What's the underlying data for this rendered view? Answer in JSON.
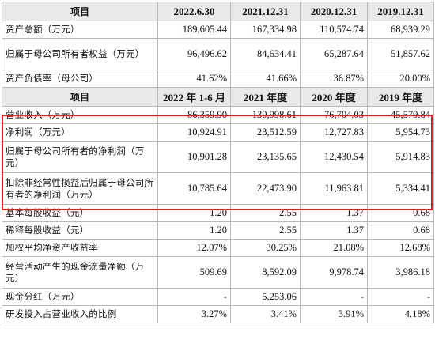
{
  "table1": {
    "header": [
      "项目",
      "2022.6.30",
      "2021.12.31",
      "2020.12.31",
      "2019.12.31"
    ],
    "rows": [
      [
        "资产总额（万元）",
        "189,605.44",
        "167,334.98",
        "110,574.74",
        "68,939.29"
      ],
      [
        "归属于母公司所有者权益（万元）",
        "96,496.62",
        "84,634.41",
        "65,287.64",
        "51,857.62"
      ],
      [
        "资产负债率（母公司）",
        "41.62%",
        "41.66%",
        "36.87%",
        "20.00%"
      ]
    ]
  },
  "table2": {
    "header": [
      "项目",
      "2022 年 1-6 月",
      "2021 年度",
      "2020 年度",
      "2019 年度"
    ],
    "rows": [
      [
        "营业收入（万元）",
        "86,359.90",
        "130,998.61",
        "76,704.03",
        "45,579.84"
      ],
      [
        "净利润（万元）",
        "10,924.91",
        "23,512.59",
        "12,727.83",
        "5,954.73"
      ],
      [
        "归属于母公司所有者的净利润（万元）",
        "10,901.28",
        "23,135.65",
        "12,430.54",
        "5,914.83"
      ],
      [
        "扣除非经常性损益后归属于母公司所有者的净利润（万元）",
        "10,785.64",
        "22,473.90",
        "11,963.81",
        "5,334.41"
      ],
      [
        "基本每股收益（元）",
        "1.20",
        "2.55",
        "1.37",
        "0.68"
      ],
      [
        "稀释每股收益（元）",
        "1.20",
        "2.55",
        "1.37",
        "0.68"
      ],
      [
        "加权平均净资产收益率",
        "12.07%",
        "30.25%",
        "21.08%",
        "12.68%"
      ],
      [
        "经营活动产生的现金流量净额（万元）",
        "509.69",
        "8,592.09",
        "9,978.74",
        "3,986.18"
      ],
      [
        "现金分红（万元）",
        "-",
        "5,253.06",
        "-",
        "-"
      ],
      [
        "研发投入占营业收入的比例",
        "3.27%",
        "3.41%",
        "3.91%",
        "4.18%"
      ]
    ]
  },
  "highlight_color": "#e02020"
}
